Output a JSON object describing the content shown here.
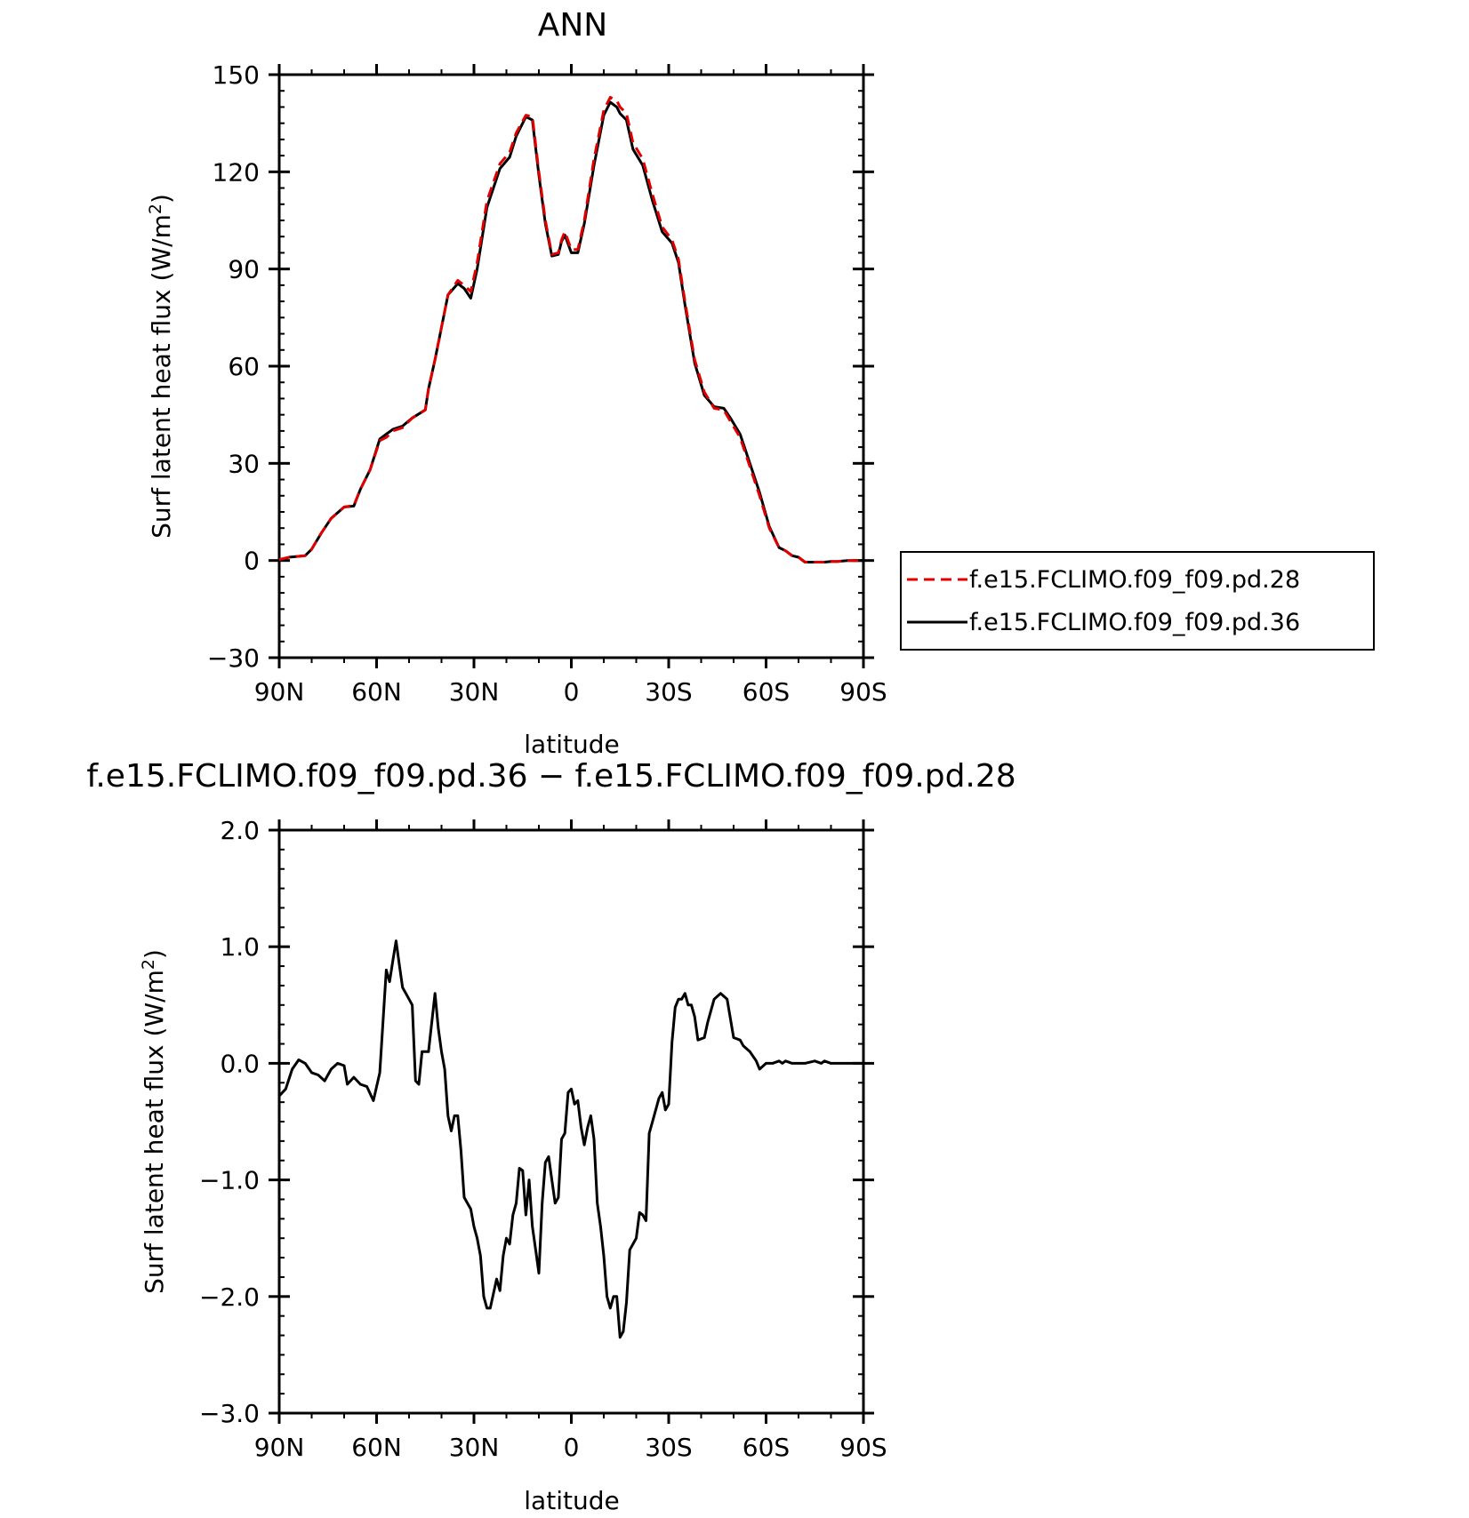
{
  "chart_data": [
    {
      "type": "line",
      "title": "ANN",
      "xlabel": "latitude",
      "ylabel": "Surf latent heat flux (W/m",
      "ylabel_sup": "2",
      "ylabel_close": ")",
      "xlim": [
        90,
        -90
      ],
      "ylim": [
        -30,
        150
      ],
      "xticks": [
        90,
        60,
        30,
        0,
        -30,
        -60,
        -90
      ],
      "xticklabels": [
        "90N",
        "60N",
        "30N",
        "0",
        "30S",
        "60S",
        "90S"
      ],
      "yticks": [
        -30,
        0,
        30,
        60,
        90,
        120,
        150
      ],
      "yticklabels": [
        "−30",
        "0",
        "30",
        "60",
        "90",
        "120",
        "150"
      ],
      "legend_position": "right",
      "series": [
        {
          "name": "f.e15.FCLIMO.f09_f09.pd.28",
          "color": "#e00000",
          "dash": "dashed",
          "x": [
            90,
            87,
            82,
            80,
            77,
            74,
            70,
            67,
            65,
            62,
            59,
            57,
            55,
            52,
            49,
            45,
            44,
            42,
            38,
            35,
            33,
            31,
            29,
            26,
            22,
            19,
            17,
            14,
            12,
            10,
            8,
            6,
            4,
            3,
            2,
            0,
            -2,
            -4,
            -7,
            -10,
            -12,
            -14,
            -15,
            -17,
            -19,
            -22,
            -25,
            -28,
            -31,
            -33,
            -35,
            -38,
            -41,
            -44,
            -47,
            -49,
            -52,
            -55,
            -58,
            -61,
            -64,
            -66,
            -68,
            -70,
            -72,
            -75,
            -78,
            -80,
            -82,
            -85,
            -88,
            -90
          ],
          "y": [
            0.3,
            1,
            1.5,
            3.5,
            8.5,
            13,
            16.5,
            17,
            22,
            28,
            37,
            38,
            40,
            41,
            44,
            46.5,
            53,
            62,
            82,
            86.5,
            85,
            83,
            92,
            111,
            122.5,
            126,
            132,
            137.5,
            137,
            120,
            105,
            94.5,
            95,
            99,
            101.5,
            96,
            96,
            105,
            124,
            139,
            143,
            142,
            140,
            138,
            129,
            124,
            113,
            103,
            99,
            93,
            80,
            62,
            52,
            47,
            46.5,
            43,
            38,
            29,
            20,
            10,
            4,
            3,
            1.5,
            1,
            -0.5,
            -0.5,
            -0.5,
            -0.3,
            -0.3,
            0,
            0,
            0
          ]
        },
        {
          "name": "f.e15.FCLIMO.f09_f09.pd.36",
          "color": "#000000",
          "dash": "solid",
          "x": [
            90,
            87,
            82,
            80,
            77,
            74,
            70,
            67,
            65,
            62,
            59,
            57,
            55,
            52,
            49,
            45,
            44,
            42,
            38,
            35,
            33,
            31,
            29,
            26,
            22,
            19,
            17,
            14,
            12,
            10,
            8,
            6,
            4,
            3,
            2,
            0,
            -2,
            -4,
            -7,
            -10,
            -12,
            -14,
            -15,
            -17,
            -19,
            -22,
            -25,
            -28,
            -31,
            -33,
            -35,
            -38,
            -41,
            -44,
            -47,
            -49,
            -52,
            -55,
            -58,
            -61,
            -64,
            -66,
            -68,
            -70,
            -72,
            -75,
            -78,
            -80,
            -82,
            -85,
            -88,
            -90
          ],
          "y": [
            0,
            1,
            1.5,
            3.5,
            8.5,
            13,
            16.5,
            16.8,
            22,
            28,
            37.5,
            39,
            40.5,
            41.5,
            44,
            46.5,
            53,
            62,
            82,
            85.5,
            84,
            81,
            90,
            109,
            121,
            124.5,
            131,
            137,
            136,
            119,
            104,
            94,
            94.5,
            98.5,
            100.5,
            95,
            95,
            104,
            122,
            137.5,
            141.5,
            140,
            138,
            136,
            127,
            122,
            111,
            101.5,
            98,
            92,
            79,
            61,
            51,
            47.5,
            47,
            44,
            39,
            30,
            21,
            10.5,
            4,
            3,
            1.5,
            1,
            -0.5,
            -0.5,
            -0.5,
            -0.3,
            -0.3,
            0,
            0,
            0
          ]
        }
      ]
    },
    {
      "type": "line",
      "title": "f.e15.FCLIMO.f09_f09.pd.36 − f.e15.FCLIMO.f09_f09.pd.28",
      "xlabel": "latitude",
      "ylabel": "Surf latent heat flux (W/m",
      "ylabel_sup": "2",
      "ylabel_close": ")",
      "xlim": [
        90,
        -90
      ],
      "ylim": [
        -3.0,
        2.0
      ],
      "xticks": [
        90,
        60,
        30,
        0,
        -30,
        -60,
        -90
      ],
      "xticklabels": [
        "90N",
        "60N",
        "30N",
        "0",
        "30S",
        "60S",
        "90S"
      ],
      "yticks": [
        -3,
        -2,
        -1,
        0,
        1,
        2
      ],
      "yticklabels": [
        "−3.0",
        "−2.0",
        "−1.0",
        "0.0",
        "1.0",
        "2.0"
      ],
      "series": [
        {
          "color": "#000000",
          "dash": "solid",
          "x": [
            90,
            88,
            86,
            84,
            82,
            80,
            78,
            76,
            74,
            72,
            70,
            69,
            67,
            65,
            63,
            61,
            59,
            57,
            56,
            55,
            54,
            53,
            52,
            51,
            49,
            48,
            47,
            46,
            44,
            42,
            41,
            40,
            39,
            38,
            37,
            36,
            35,
            34,
            33,
            31,
            30,
            29,
            28,
            27,
            26,
            25,
            23,
            22,
            21,
            20,
            19,
            18,
            17,
            16,
            15,
            14,
            13,
            12,
            11,
            10,
            9,
            8,
            7,
            6,
            5,
            4,
            3,
            2,
            1,
            0,
            -1,
            -2,
            -3,
            -4,
            -5,
            -6,
            -7,
            -8,
            -9,
            -10,
            -11,
            -12,
            -13,
            -14,
            -15,
            -16,
            -17,
            -18,
            -19,
            -20,
            -21,
            -22,
            -23,
            -24,
            -25,
            -27,
            -28,
            -29,
            -30,
            -31,
            -32,
            -33,
            -34,
            -35,
            -36,
            -37,
            -38,
            -39,
            -41,
            -42,
            -44,
            -46,
            -48,
            -50,
            -52,
            -53,
            -55,
            -57,
            -58,
            -60,
            -62,
            -64,
            -65,
            -66,
            -68,
            -70,
            -72,
            -75,
            -77,
            -78,
            -80,
            -85,
            -90
          ],
          "y": [
            -0.28,
            -0.22,
            -0.05,
            0.03,
            0.0,
            -0.08,
            -0.1,
            -0.15,
            -0.05,
            0.0,
            -0.02,
            -0.18,
            -0.12,
            -0.18,
            -0.2,
            -0.32,
            -0.08,
            0.8,
            0.7,
            0.88,
            1.05,
            0.85,
            0.65,
            0.6,
            0.5,
            -0.15,
            -0.18,
            0.1,
            0.1,
            0.6,
            0.3,
            0.1,
            -0.05,
            -0.45,
            -0.58,
            -0.45,
            -0.45,
            -0.75,
            -1.15,
            -1.25,
            -1.4,
            -1.5,
            -1.65,
            -2.0,
            -2.1,
            -2.1,
            -1.85,
            -1.95,
            -1.65,
            -1.5,
            -1.55,
            -1.3,
            -1.2,
            -0.9,
            -0.92,
            -1.3,
            -1.0,
            -1.4,
            -1.6,
            -1.8,
            -1.2,
            -0.85,
            -0.8,
            -1.0,
            -1.2,
            -1.15,
            -0.65,
            -0.6,
            -0.25,
            -0.22,
            -0.35,
            -0.32,
            -0.55,
            -0.7,
            -0.55,
            -0.45,
            -0.65,
            -1.2,
            -1.4,
            -1.65,
            -2.0,
            -2.1,
            -2.0,
            -2.0,
            -2.35,
            -2.3,
            -2.05,
            -1.6,
            -1.55,
            -1.5,
            -1.28,
            -1.3,
            -1.35,
            -0.6,
            -0.5,
            -0.3,
            -0.25,
            -0.4,
            -0.35,
            0.18,
            0.48,
            0.55,
            0.55,
            0.6,
            0.5,
            0.5,
            0.4,
            0.2,
            0.22,
            0.35,
            0.55,
            0.6,
            0.55,
            0.22,
            0.2,
            0.15,
            0.1,
            0.02,
            -0.05,
            0.0,
            0.0,
            0.02,
            0.0,
            0.02,
            0.0,
            0.0,
            0.0,
            0.02,
            0.0,
            0.02,
            0.0,
            0.0,
            0.0
          ]
        }
      ]
    }
  ]
}
